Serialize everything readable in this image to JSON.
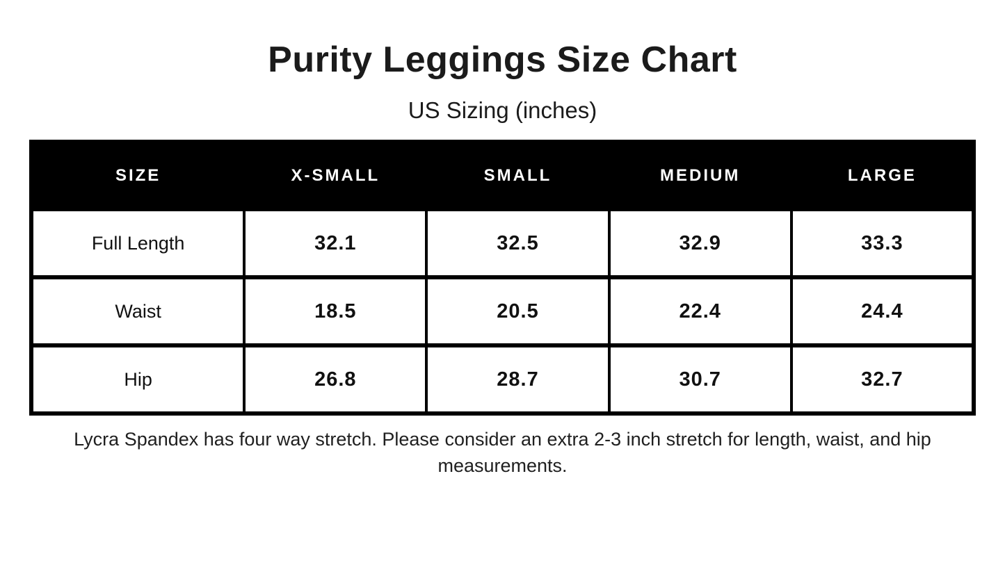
{
  "page": {
    "title": "Purity Leggings Size Chart",
    "subtitle": "US Sizing (inches)",
    "note": "Lycra Spandex has four way stretch. Please consider an extra 2-3 inch stretch for length, waist, and hip measurements."
  },
  "chart_data": {
    "type": "table",
    "title": "Purity Leggings Size Chart",
    "subtitle": "US Sizing (inches)",
    "columns": [
      "SIZE",
      "X-SMALL",
      "SMALL",
      "MEDIUM",
      "LARGE"
    ],
    "rows": [
      {
        "label": "Full Length",
        "values": [
          32.1,
          32.5,
          32.9,
          33.3
        ]
      },
      {
        "label": "Waist",
        "values": [
          18.5,
          20.5,
          22.4,
          24.4
        ]
      },
      {
        "label": "Hip",
        "values": [
          26.8,
          28.7,
          30.7,
          32.7
        ]
      }
    ],
    "units": "inches",
    "note": "Lycra Spandex has four way stretch. Please consider an extra 2-3 inch stretch for length, waist, and hip measurements."
  },
  "colors": {
    "background": "#ffffff",
    "header_bg": "#000000",
    "header_text": "#ffffff",
    "border": "#000000",
    "body_text": "#1b1b1b"
  }
}
